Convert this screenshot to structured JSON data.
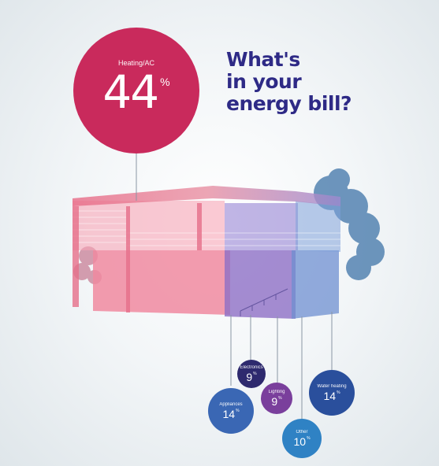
{
  "title_lines": [
    "What's",
    "in your",
    "energy bill?"
  ],
  "chart_data": {
    "type": "pie",
    "categories": [
      "Heating/AC",
      "Electronics",
      "Lighting",
      "Appliances",
      "Water heating",
      "Other"
    ],
    "values": [
      44,
      9,
      9,
      14,
      14,
      10
    ],
    "unit": "%",
    "colors": [
      "#c92a5c",
      "#2e2a6e",
      "#7a3f9c",
      "#3a67b4",
      "#2a4f9c",
      "#2f82c4"
    ]
  }
}
